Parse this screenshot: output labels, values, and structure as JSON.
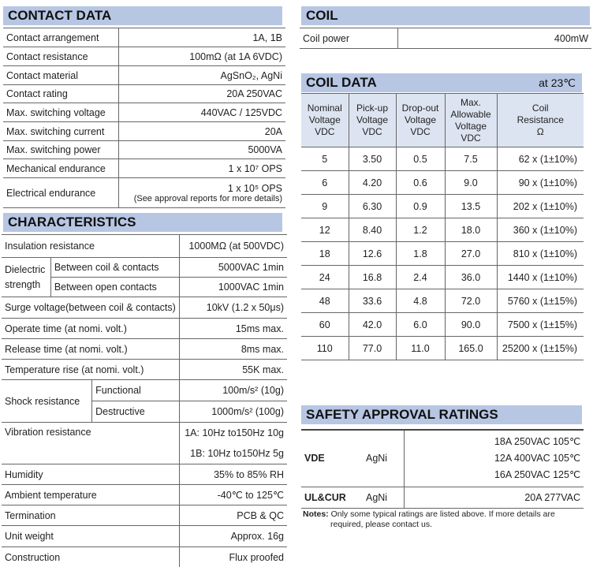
{
  "contact_data": {
    "title": "CONTACT DATA",
    "rows": [
      {
        "label": "Contact arrangement",
        "value": "1A, 1B"
      },
      {
        "label": "Contact resistance",
        "value": "100mΩ (at 1A 6VDC)"
      },
      {
        "label": "Contact material",
        "value": "AgSnO₂, AgNi"
      },
      {
        "label": "Contact rating",
        "value": "20A 250VAC"
      },
      {
        "label": "Max. switching voltage",
        "value": "440VAC / 125VDC"
      },
      {
        "label": "Max. switching current",
        "value": "20A"
      },
      {
        "label": "Max. switching power",
        "value": "5000VA"
      },
      {
        "label": "Mechanical endurance",
        "value": "1 x 10⁷ OPS"
      },
      {
        "label": "Electrical endurance",
        "value": "1 x 10⁵ OPS",
        "note": "(See approval reports for more details)"
      }
    ]
  },
  "characteristics": {
    "title": "CHARACTERISTICS",
    "insulation": {
      "label": "Insulation resistance",
      "value": "1000MΩ (at 500VDC)"
    },
    "dielectric": {
      "label": "Dielectric strength",
      "rows": [
        {
          "label": "Between coil & contacts",
          "value": "5000VAC 1min"
        },
        {
          "label": "Between open contacts",
          "value": "1000VAC 1min"
        }
      ]
    },
    "rows_a": [
      {
        "label": "Surge voltage(between coil & contacts)",
        "value": "10kV (1.2 x 50μs)"
      },
      {
        "label": "Operate time (at nomi. volt.)",
        "value": "15ms max."
      },
      {
        "label": "Release time (at nomi. volt.)",
        "value": "8ms max."
      },
      {
        "label": "Temperature rise (at nomi. volt.)",
        "value": "55K max."
      }
    ],
    "shock": {
      "label": "Shock resistance",
      "rows": [
        {
          "label": "Functional",
          "value": "100m/s² (10g)"
        },
        {
          "label": "Destructive",
          "value": "1000m/s² (100g)"
        }
      ]
    },
    "vibration": {
      "label": "Vibration resistance",
      "values": [
        "1A: 10Hz to150Hz 10g",
        "1B: 10Hz to150Hz 5g"
      ]
    },
    "rows_b": [
      {
        "label": "Humidity",
        "value": "35% to 85% RH"
      },
      {
        "label": "Ambient temperature",
        "value": "-40℃ to 125℃"
      },
      {
        "label": "Termination",
        "value": "PCB & QC"
      },
      {
        "label": "Unit weight",
        "value": "Approx. 16g"
      },
      {
        "label": "Construction",
        "value": "Flux proofed"
      }
    ]
  },
  "coil": {
    "title": "COIL",
    "rows": [
      {
        "label": "Coil power",
        "value": "400mW"
      }
    ]
  },
  "coil_data": {
    "title": "COIL DATA",
    "condition": "at 23℃",
    "headers": [
      [
        "Nominal",
        "Voltage",
        "VDC"
      ],
      [
        "Pick-up",
        "Voltage",
        "VDC"
      ],
      [
        "Drop-out",
        "Voltage",
        "VDC"
      ],
      [
        "Max.",
        "Allowable",
        "Voltage",
        "VDC"
      ],
      [
        "Coil",
        "Resistance",
        "Ω"
      ]
    ],
    "rows": [
      [
        "5",
        "3.50",
        "0.5",
        "7.5",
        "62 x (1±10%)"
      ],
      [
        "6",
        "4.20",
        "0.6",
        "9.0",
        "90 x (1±10%)"
      ],
      [
        "9",
        "6.30",
        "0.9",
        "13.5",
        "202 x (1±10%)"
      ],
      [
        "12",
        "8.40",
        "1.2",
        "18.0",
        "360 x (1±10%)"
      ],
      [
        "18",
        "12.6",
        "1.8",
        "27.0",
        "810 x (1±10%)"
      ],
      [
        "24",
        "16.8",
        "2.4",
        "36.0",
        "1440 x (1±10%)"
      ],
      [
        "48",
        "33.6",
        "4.8",
        "72.0",
        "5760 x (1±15%)"
      ],
      [
        "60",
        "42.0",
        "6.0",
        "90.0",
        "7500 x (1±15%)"
      ],
      [
        "110",
        "77.0",
        "11.0",
        "165.0",
        "25200 x (1±15%)"
      ]
    ]
  },
  "safety": {
    "title": "SAFETY APPROVAL RATINGS",
    "rows": [
      {
        "standard": "VDE",
        "material": "AgNi",
        "ratings": [
          "18A 250VAC 105℃",
          "12A 400VAC 105℃",
          "16A 250VAC 125℃"
        ]
      },
      {
        "standard": "UL&CUR",
        "material": "AgNi",
        "ratings": [
          "20A 277VAC"
        ]
      }
    ],
    "notes_label": "Notes:",
    "notes_line1": "Only some typical ratings are listed above. If more details are",
    "notes_line2": "required, please contact us."
  }
}
